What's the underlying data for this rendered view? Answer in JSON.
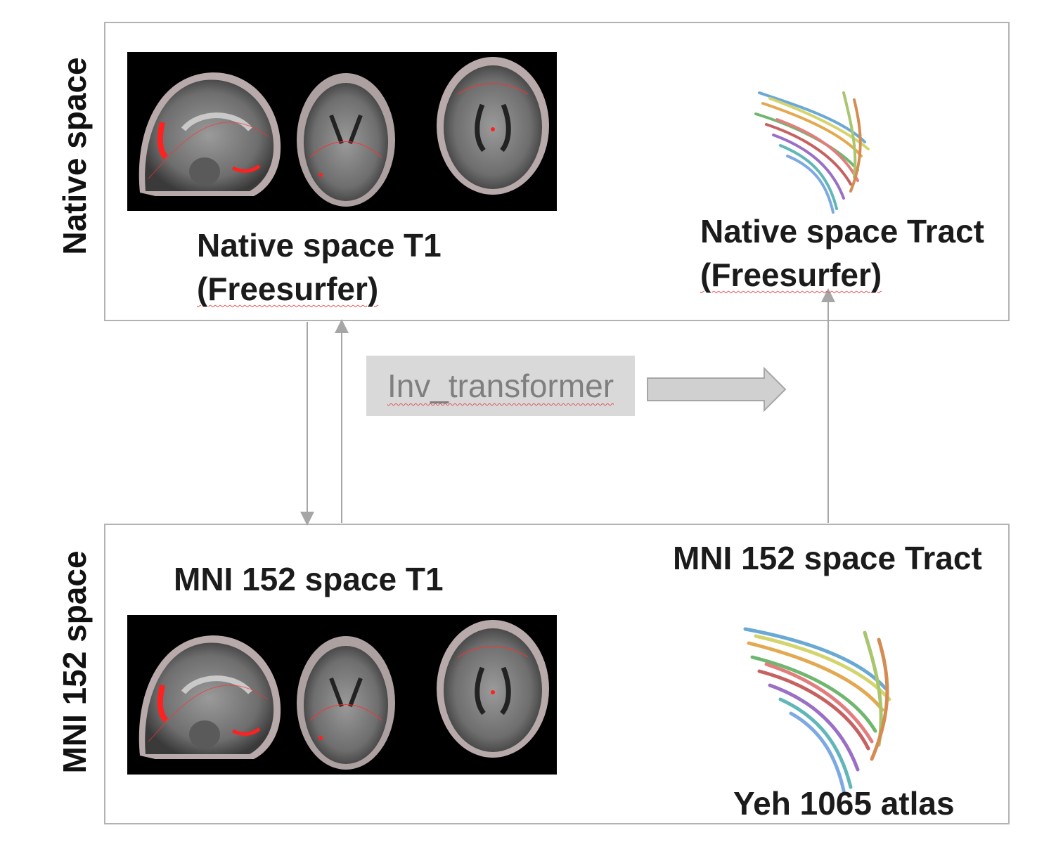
{
  "native_panel": {
    "side_label": "Native space",
    "t1_caption_line1": "Native space T1",
    "t1_caption_line2": "(Freesurfer)",
    "tract_caption_line1": "Native space Tract",
    "tract_caption_line2": "(Freesurfer)"
  },
  "mni_panel": {
    "side_label": "MNI 152 space",
    "t1_caption": "MNI 152 space T1",
    "tract_caption": "MNI 152 space Tract",
    "atlas_caption": "Yeh 1065 atlas"
  },
  "transform": {
    "label": "Inv_transformer"
  },
  "colors": {
    "border": "#b3b3b3",
    "connector": "#a6a6a6",
    "transform_box": "#d9d9d9",
    "transform_text": "#7f7f7f",
    "arrow_fill": "#d0d0d0",
    "contour": "#ff2020"
  },
  "icons": {
    "mri_slices": "mri-slices-icon",
    "tractography": "tractography-bundle-icon",
    "block_arrow": "right-block-arrow-icon"
  }
}
